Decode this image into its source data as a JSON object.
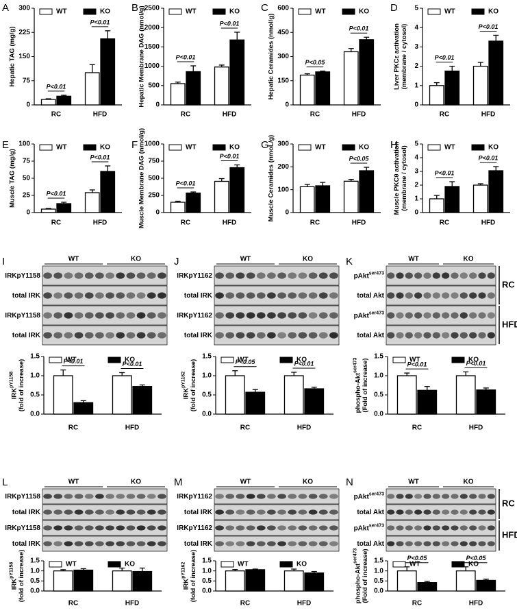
{
  "chart_data": [
    {
      "type": "bar",
      "label": "A",
      "ylabel": [
        "Hepatic TAG (mg/g)"
      ],
      "categories": [
        "RC",
        "HFD"
      ],
      "series": [
        {
          "name": "WT",
          "color": "#ffffff",
          "values": [
            17,
            100
          ],
          "errors": [
            2,
            25
          ]
        },
        {
          "name": "KO",
          "color": "#000000",
          "values": [
            27,
            205
          ],
          "errors": [
            3,
            25
          ]
        }
      ],
      "ylim": [
        0,
        300
      ],
      "yticks": [
        0,
        75,
        150,
        225,
        300
      ],
      "annotations": [
        "P<0.01",
        "P<0.01"
      ]
    },
    {
      "type": "bar",
      "label": "B",
      "ylabel": [
        "Hepatic Membrane DAG (nmol/g)"
      ],
      "categories": [
        "RC",
        "HFD"
      ],
      "series": [
        {
          "name": "WT",
          "color": "#ffffff",
          "values": [
            550,
            980
          ],
          "errors": [
            40,
            50
          ]
        },
        {
          "name": "KO",
          "color": "#000000",
          "values": [
            860,
            1680
          ],
          "errors": [
            150,
            200
          ]
        }
      ],
      "ylim": [
        0,
        2500
      ],
      "yticks": [
        0,
        500,
        1000,
        1500,
        2000,
        2500
      ],
      "annotations": [
        "P<0.01",
        "P<0.01"
      ]
    },
    {
      "type": "bar",
      "label": "C",
      "ylabel": [
        "Hepatic Ceramides (nmol/g)"
      ],
      "categories": [
        "RC",
        "HFD"
      ],
      "series": [
        {
          "name": "WT",
          "color": "#ffffff",
          "values": [
            185,
            330
          ],
          "errors": [
            8,
            20
          ]
        },
        {
          "name": "KO",
          "color": "#000000",
          "values": [
            205,
            405
          ],
          "errors": [
            5,
            15
          ]
        }
      ],
      "ylim": [
        0,
        600
      ],
      "yticks": [
        0,
        150,
        300,
        450,
        600
      ],
      "annotations": [
        "P<0.05",
        "P<0.01"
      ]
    },
    {
      "type": "bar",
      "label": "D",
      "ylabel": [
        "Liver PKCε activation",
        "(membrane / cytosol)"
      ],
      "categories": [
        "RC",
        "HFD"
      ],
      "series": [
        {
          "name": "WT",
          "color": "#ffffff",
          "values": [
            1.0,
            2.0
          ],
          "errors": [
            0.15,
            0.2
          ]
        },
        {
          "name": "KO",
          "color": "#000000",
          "values": [
            1.75,
            3.3
          ],
          "errors": [
            0.25,
            0.3
          ]
        }
      ],
      "ylim": [
        0,
        5
      ],
      "yticks": [
        0,
        1,
        2,
        3,
        4,
        5
      ],
      "annotations": [
        "P<0.01",
        "P<0.01"
      ]
    },
    {
      "type": "bar",
      "label": "E",
      "ylabel": [
        "Muscle TAG (mg/g)"
      ],
      "categories": [
        "RC",
        "HFD"
      ],
      "series": [
        {
          "name": "WT",
          "color": "#ffffff",
          "values": [
            5,
            29
          ],
          "errors": [
            1,
            4
          ]
        },
        {
          "name": "KO",
          "color": "#000000",
          "values": [
            13,
            60
          ],
          "errors": [
            2,
            8
          ]
        }
      ],
      "ylim": [
        0,
        100
      ],
      "yticks": [
        0,
        25,
        50,
        75,
        100
      ],
      "annotations": [
        "P<0.01",
        "P<0.01"
      ]
    },
    {
      "type": "bar",
      "label": "F",
      "ylabel": [
        "Muscle Membrane DAG (nmol/g)"
      ],
      "categories": [
        "RC",
        "HFD"
      ],
      "series": [
        {
          "name": "WT",
          "color": "#ffffff",
          "values": [
            150,
            455
          ],
          "errors": [
            15,
            40
          ]
        },
        {
          "name": "KO",
          "color": "#000000",
          "values": [
            285,
            655
          ],
          "errors": [
            15,
            40
          ]
        }
      ],
      "ylim": [
        0,
        1000
      ],
      "yticks": [
        0,
        250,
        500,
        750,
        1000
      ],
      "annotations": [
        "P<0.01",
        "P<0.01"
      ]
    },
    {
      "type": "bar",
      "label": "G",
      "ylabel": [
        "Muscle Ceramides (nmoL/g)"
      ],
      "categories": [
        "RC",
        "HFD"
      ],
      "series": [
        {
          "name": "WT",
          "color": "#ffffff",
          "values": [
            113,
            137
          ],
          "errors": [
            10,
            8
          ]
        },
        {
          "name": "KO",
          "color": "#000000",
          "values": [
            117,
            183
          ],
          "errors": [
            15,
            15
          ]
        }
      ],
      "ylim": [
        0,
        300
      ],
      "yticks": [
        0,
        100,
        200,
        300
      ],
      "annotations": [
        null,
        "P<0.05"
      ]
    },
    {
      "type": "bar",
      "label": "H",
      "ylabel": [
        "Muscle PKCθ activation",
        "(membrane / cytosol)"
      ],
      "categories": [
        "RC",
        "HFD"
      ],
      "series": [
        {
          "name": "WT",
          "color": "#ffffff",
          "values": [
            1.0,
            2.0
          ],
          "errors": [
            0.25,
            0.1
          ]
        },
        {
          "name": "KO",
          "color": "#000000",
          "values": [
            1.9,
            3.05
          ],
          "errors": [
            0.35,
            0.3
          ]
        }
      ],
      "ylim": [
        0,
        5
      ],
      "yticks": [
        0,
        1,
        2,
        3,
        4,
        5
      ],
      "annotations": [
        "P<0.01",
        "P<0.01"
      ]
    },
    {
      "type": "bar",
      "label": "I",
      "ylabel": [
        {
          "text": "IRK",
          "sup": "pY1158"
        },
        "(fold of increase)"
      ],
      "categories": [
        "RC",
        "HFD"
      ],
      "blot": {
        "groups": [
          "WT",
          "KO"
        ],
        "rows": [
          "IRKpY1158",
          "total IRK",
          "IRKpY1158",
          "total IRK"
        ]
      },
      "series": [
        {
          "name": "WT",
          "color": "#ffffff",
          "values": [
            1.0,
            1.0
          ],
          "errors": [
            0.15,
            0.08
          ]
        },
        {
          "name": "KO",
          "color": "#000000",
          "values": [
            0.3,
            0.72
          ],
          "errors": [
            0.05,
            0.04
          ]
        }
      ],
      "ylim": [
        0,
        1.5
      ],
      "yticks": [
        {
          "value": 0,
          "label": "0.0"
        },
        0.5,
        {
          "value": 1,
          "label": "1.0"
        },
        1.5
      ],
      "annotations": [
        "P<0.01",
        "P<0.01"
      ]
    },
    {
      "type": "bar",
      "label": "J",
      "ylabel": [
        {
          "text": "IRK",
          "sup": "pY1162"
        },
        "(fold of increase)"
      ],
      "categories": [
        "RC",
        "HFD"
      ],
      "blot": {
        "groups": [
          "WT",
          "KO"
        ],
        "rows": [
          "IRKpY1162",
          "total IRK",
          "IRKpY1162",
          "total IRK"
        ]
      },
      "series": [
        {
          "name": "WT",
          "color": "#ffffff",
          "values": [
            1.0,
            1.0
          ],
          "errors": [
            0.13,
            0.09
          ]
        },
        {
          "name": "KO",
          "color": "#000000",
          "values": [
            0.57,
            0.66
          ],
          "errors": [
            0.07,
            0.04
          ]
        }
      ],
      "ylim": [
        0,
        1.5
      ],
      "yticks": [
        {
          "value": 0,
          "label": "0.0"
        },
        0.5,
        {
          "value": 1,
          "label": "1.0"
        },
        1.5
      ],
      "annotations": [
        "P<0.05",
        "P<0.01"
      ]
    },
    {
      "type": "bar",
      "label": "K",
      "ylabel": [
        {
          "text": "phospho-Akt",
          "sup": "ser473"
        },
        "(Fold of increase)"
      ],
      "categories": [
        "RC",
        "HFD"
      ],
      "blot": {
        "groups": [
          "WT",
          "KO"
        ],
        "rows": [
          {
            "text": "pAkt",
            "sup": "ser473"
          },
          "total Akt",
          {
            "text": "pAkt",
            "sup": "ser473"
          },
          "total Akt"
        ],
        "conditions": [
          "RC",
          "HFD"
        ]
      },
      "series": [
        {
          "name": "WT",
          "color": "#ffffff",
          "values": [
            1.0,
            1.0
          ],
          "errors": [
            0.07,
            0.1
          ]
        },
        {
          "name": "KO",
          "color": "#000000",
          "values": [
            0.62,
            0.63
          ],
          "errors": [
            0.1,
            0.05
          ]
        }
      ],
      "ylim": [
        0,
        1.5
      ],
      "yticks": [
        {
          "value": 0,
          "label": "0.0"
        },
        0.5,
        {
          "value": 1,
          "label": "1.0"
        },
        1.5
      ],
      "annotations": [
        "P<0.01",
        "P<0.01"
      ]
    },
    {
      "type": "bar",
      "label": "L",
      "ylabel": [
        {
          "text": "IRK",
          "sup": "pY1158"
        },
        "(fold of increase)"
      ],
      "categories": [
        "RC",
        "HFD"
      ],
      "blot": {
        "groups": [
          "WT",
          "KO"
        ],
        "rows": [
          "IRKpY1158",
          "total IRK",
          "IRKpY1158",
          "total IRK"
        ]
      },
      "series": [
        {
          "name": "WT",
          "color": "#ffffff",
          "values": [
            1.0,
            1.0
          ],
          "errors": [
            0.06,
            0.14
          ]
        },
        {
          "name": "KO",
          "color": "#000000",
          "values": [
            1.04,
            0.97
          ],
          "errors": [
            0.07,
            0.17
          ]
        }
      ],
      "ylim": [
        0,
        1.5
      ],
      "yticks": [
        {
          "value": 0,
          "label": "0.0"
        },
        0.5,
        {
          "value": 1,
          "label": "1.0"
        },
        1.5
      ]
    },
    {
      "type": "bar",
      "label": "M",
      "ylabel": [
        {
          "text": "IRK",
          "sup": "pY1162"
        },
        "(fold of increase)"
      ],
      "categories": [
        "RC",
        "HFD"
      ],
      "blot": {
        "groups": [
          "WT",
          "KO"
        ],
        "rows": [
          "IRKpY1162",
          "total IRK",
          "IRKpY1162",
          "total IRK"
        ]
      },
      "series": [
        {
          "name": "WT",
          "color": "#ffffff",
          "values": [
            1.0,
            1.0
          ],
          "errors": [
            0.07,
            0.09
          ]
        },
        {
          "name": "KO",
          "color": "#000000",
          "values": [
            1.06,
            0.9
          ],
          "errors": [
            0.03,
            0.07
          ]
        }
      ],
      "ylim": [
        0,
        1.5
      ],
      "yticks": [
        {
          "value": 0,
          "label": "0.0"
        },
        0.5,
        {
          "value": 1,
          "label": "1.0"
        },
        1.5
      ]
    },
    {
      "type": "bar",
      "label": "N",
      "ylabel": [
        {
          "text": "phospho-Akt",
          "sup": "ser473"
        },
        "(Fold of increase)"
      ],
      "categories": [
        "RC",
        "HFD"
      ],
      "blot": {
        "groups": [
          "WT",
          "KO"
        ],
        "rows": [
          {
            "text": "pAkt",
            "sup": "ser473"
          },
          "total Akt",
          {
            "text": "pAkt",
            "sup": "ser473"
          },
          "total Akt"
        ],
        "conditions": [
          "RC",
          "HFD"
        ]
      },
      "series": [
        {
          "name": "WT",
          "color": "#ffffff",
          "values": [
            1.0,
            1.0
          ],
          "errors": [
            0.2,
            0.2
          ]
        },
        {
          "name": "KO",
          "color": "#000000",
          "values": [
            0.42,
            0.53
          ],
          "errors": [
            0.06,
            0.06
          ]
        }
      ],
      "ylim": [
        0,
        1.5
      ],
      "yticks": [
        {
          "value": 0,
          "label": "0.0"
        },
        0.5,
        {
          "value": 1,
          "label": "1.0"
        },
        1.5
      ],
      "annotations": [
        "P<0.05",
        "P<0.05"
      ]
    }
  ]
}
